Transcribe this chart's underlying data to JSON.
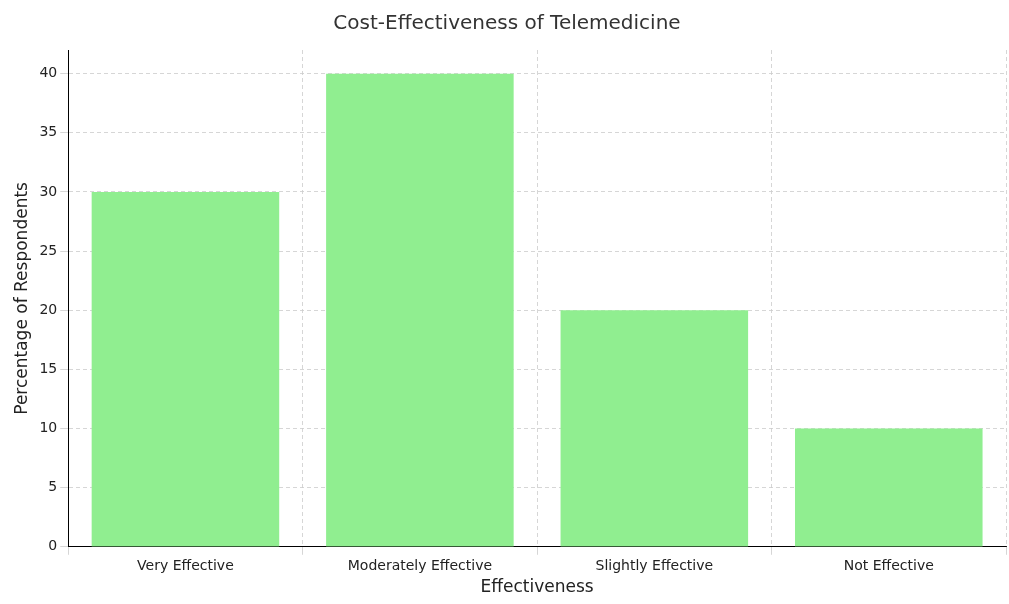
{
  "chart_data": {
    "type": "bar",
    "title": "Cost-Effectiveness of Telemedicine",
    "xlabel": "Effectiveness",
    "ylabel": "Percentage of Respondents",
    "categories": [
      "Very Effective",
      "Moderately Effective",
      "Slightly Effective",
      "Not Effective"
    ],
    "values": [
      30,
      40,
      20,
      10
    ],
    "color": "#90ee90",
    "ylim": [
      0,
      42
    ],
    "yticks": [
      0,
      5,
      10,
      15,
      20,
      25,
      30,
      35,
      40
    ],
    "grid": true,
    "legend": false
  }
}
